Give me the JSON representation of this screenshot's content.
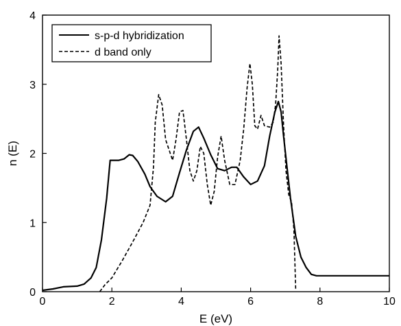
{
  "chart_data": {
    "type": "line",
    "xlabel": "E (eV)",
    "ylabel": "n (E)",
    "xlim": [
      0,
      10
    ],
    "ylim": [
      0,
      4
    ],
    "xticks": [
      0,
      2,
      4,
      6,
      8,
      10
    ],
    "yticks": [
      0,
      1,
      2,
      3,
      4
    ],
    "grid": false,
    "legend": {
      "position": "top-left"
    },
    "series": [
      {
        "name": "s-p-d hybridization",
        "style": "solid",
        "color": "#000000",
        "points": [
          [
            0,
            0.02
          ],
          [
            0.3,
            0.04
          ],
          [
            0.6,
            0.07
          ],
          [
            1.0,
            0.08
          ],
          [
            1.2,
            0.11
          ],
          [
            1.4,
            0.2
          ],
          [
            1.55,
            0.35
          ],
          [
            1.7,
            0.75
          ],
          [
            1.85,
            1.35
          ],
          [
            1.95,
            1.9
          ],
          [
            2.2,
            1.9
          ],
          [
            2.35,
            1.92
          ],
          [
            2.5,
            1.98
          ],
          [
            2.6,
            1.97
          ],
          [
            2.75,
            1.88
          ],
          [
            2.95,
            1.7
          ],
          [
            3.1,
            1.52
          ],
          [
            3.3,
            1.38
          ],
          [
            3.55,
            1.3
          ],
          [
            3.75,
            1.38
          ],
          [
            3.95,
            1.72
          ],
          [
            4.15,
            2.05
          ],
          [
            4.35,
            2.32
          ],
          [
            4.5,
            2.38
          ],
          [
            4.65,
            2.22
          ],
          [
            4.85,
            1.98
          ],
          [
            5.05,
            1.78
          ],
          [
            5.25,
            1.75
          ],
          [
            5.45,
            1.8
          ],
          [
            5.6,
            1.8
          ],
          [
            5.8,
            1.66
          ],
          [
            6.0,
            1.55
          ],
          [
            6.2,
            1.6
          ],
          [
            6.4,
            1.82
          ],
          [
            6.55,
            2.25
          ],
          [
            6.7,
            2.6
          ],
          [
            6.8,
            2.75
          ],
          [
            6.88,
            2.6
          ],
          [
            6.95,
            2.25
          ],
          [
            7.05,
            1.8
          ],
          [
            7.15,
            1.35
          ],
          [
            7.3,
            0.8
          ],
          [
            7.45,
            0.5
          ],
          [
            7.6,
            0.35
          ],
          [
            7.75,
            0.25
          ],
          [
            7.9,
            0.23
          ],
          [
            8.3,
            0.23
          ],
          [
            9.0,
            0.23
          ],
          [
            10.0,
            0.23
          ]
        ]
      },
      {
        "name": "d band only",
        "style": "dashed",
        "color": "#000000",
        "points": [
          [
            1.65,
            0.0
          ],
          [
            1.8,
            0.1
          ],
          [
            2.0,
            0.2
          ],
          [
            2.3,
            0.45
          ],
          [
            2.6,
            0.72
          ],
          [
            2.9,
            1.0
          ],
          [
            3.1,
            1.25
          ],
          [
            3.2,
            1.8
          ],
          [
            3.25,
            2.45
          ],
          [
            3.35,
            2.85
          ],
          [
            3.45,
            2.7
          ],
          [
            3.55,
            2.2
          ],
          [
            3.65,
            2.05
          ],
          [
            3.75,
            1.9
          ],
          [
            3.85,
            2.2
          ],
          [
            3.95,
            2.6
          ],
          [
            4.05,
            2.62
          ],
          [
            4.15,
            2.2
          ],
          [
            4.25,
            1.75
          ],
          [
            4.35,
            1.6
          ],
          [
            4.45,
            1.75
          ],
          [
            4.55,
            2.1
          ],
          [
            4.65,
            2.0
          ],
          [
            4.75,
            1.55
          ],
          [
            4.85,
            1.25
          ],
          [
            4.95,
            1.45
          ],
          [
            5.05,
            1.95
          ],
          [
            5.15,
            2.25
          ],
          [
            5.25,
            1.9
          ],
          [
            5.4,
            1.55
          ],
          [
            5.55,
            1.55
          ],
          [
            5.7,
            1.9
          ],
          [
            5.8,
            2.35
          ],
          [
            5.9,
            2.95
          ],
          [
            5.98,
            3.3
          ],
          [
            6.05,
            3.0
          ],
          [
            6.12,
            2.4
          ],
          [
            6.2,
            2.35
          ],
          [
            6.3,
            2.55
          ],
          [
            6.4,
            2.4
          ],
          [
            6.55,
            2.38
          ],
          [
            6.65,
            2.45
          ],
          [
            6.72,
            2.7
          ],
          [
            6.78,
            3.2
          ],
          [
            6.82,
            3.7
          ],
          [
            6.88,
            3.3
          ],
          [
            6.95,
            2.4
          ],
          [
            7.02,
            1.75
          ],
          [
            7.1,
            1.4
          ],
          [
            7.18,
            1.3
          ],
          [
            7.25,
            0.9
          ],
          [
            7.3,
            0.02
          ]
        ]
      }
    ]
  }
}
